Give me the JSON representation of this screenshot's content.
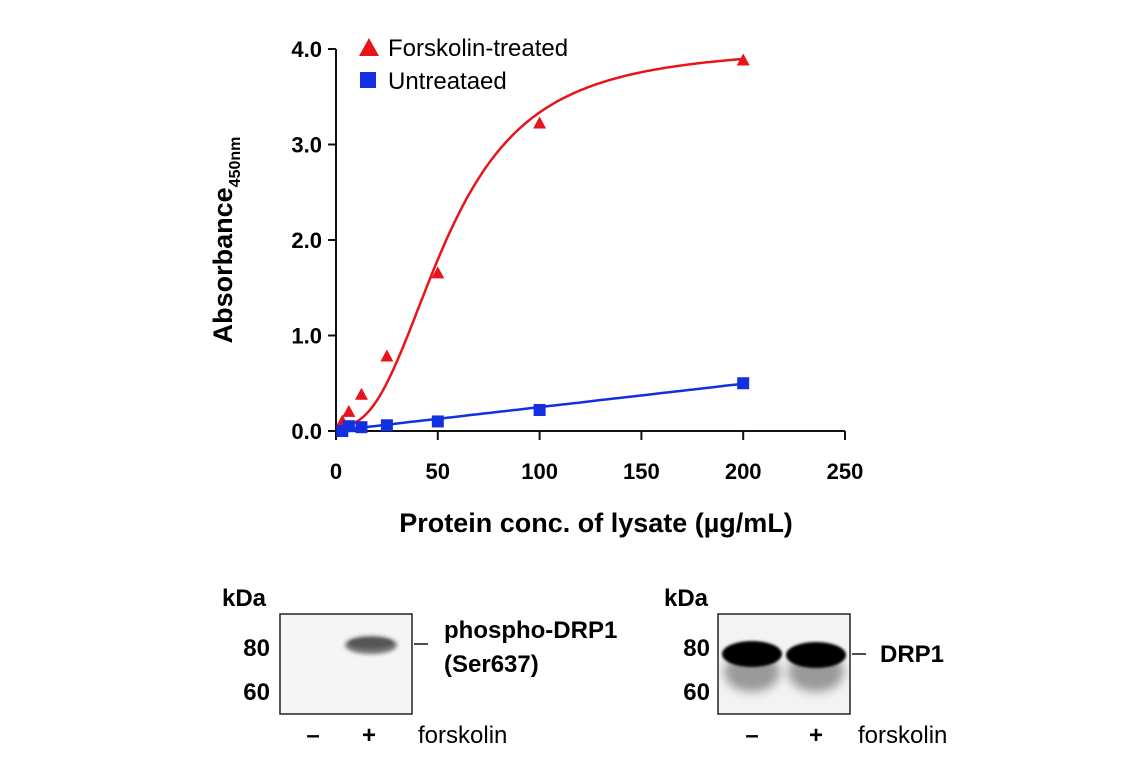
{
  "chart_data": {
    "type": "scatter",
    "title": "",
    "xlabel": "Protein conc. of lysate (µg/mL)",
    "ylabel_main": "Absorbance",
    "ylabel_sub": "450nm",
    "xlim": [
      0,
      250
    ],
    "ylim": [
      0,
      4.0
    ],
    "xticks": [
      0,
      50,
      100,
      150,
      200,
      250
    ],
    "yticks": [
      0,
      1.0,
      2.0,
      3.0,
      4.0
    ],
    "xtick_labels": [
      "0",
      "50",
      "100",
      "150",
      "200",
      "250"
    ],
    "ytick_labels": [
      "0.0",
      "1.0",
      "2.0",
      "3.0",
      "4.0"
    ],
    "grid": false,
    "legend_position": "top-left",
    "series": [
      {
        "name": "Forskolin-treated",
        "marker": "triangle",
        "color": "#e8141b",
        "x": [
          3.1,
          6.3,
          12.5,
          25,
          50,
          100,
          200
        ],
        "y": [
          0.1,
          0.2,
          0.38,
          0.78,
          1.65,
          3.22,
          3.88
        ]
      },
      {
        "name": "Untreataed",
        "marker": "square",
        "color": "#1230e0",
        "x": [
          3.1,
          6.3,
          12.5,
          25,
          50,
          100,
          200
        ],
        "y": [
          0.0,
          0.05,
          0.04,
          0.06,
          0.1,
          0.22,
          0.5
        ]
      }
    ]
  },
  "blots": [
    {
      "kda_label": "kDa",
      "markers": [
        "80",
        "60"
      ],
      "target_line1": "phospho-DRP1",
      "target_line2": "(Ser637)",
      "lanes": [
        "–",
        "+"
      ],
      "treatment": "forskolin"
    },
    {
      "kda_label": "kDa",
      "markers": [
        "80",
        "60"
      ],
      "target_line1": "DRP1",
      "target_line2": "",
      "lanes": [
        "–",
        "+"
      ],
      "treatment": "forskolin"
    }
  ]
}
